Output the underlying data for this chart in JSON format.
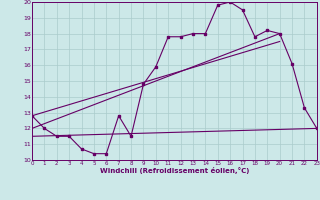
{
  "xlabel": "Windchill (Refroidissement éolien,°C)",
  "xlim": [
    0,
    23
  ],
  "ylim": [
    10,
    20
  ],
  "yticks": [
    10,
    11,
    12,
    13,
    14,
    15,
    16,
    17,
    18,
    19,
    20
  ],
  "xticks": [
    0,
    1,
    2,
    3,
    4,
    5,
    6,
    7,
    8,
    9,
    10,
    11,
    12,
    13,
    14,
    15,
    16,
    17,
    18,
    19,
    20,
    21,
    22,
    23
  ],
  "bg_color": "#cce8e8",
  "grid_color": "#aacccc",
  "line_color": "#660066",
  "main_line_x": [
    0,
    1,
    2,
    3,
    4,
    5,
    6,
    7,
    8,
    9,
    10,
    11,
    12,
    13,
    14,
    15,
    16,
    17,
    18,
    19,
    20,
    21,
    22,
    23
  ],
  "main_line_y": [
    12.8,
    12.0,
    11.5,
    11.5,
    10.7,
    10.4,
    10.4,
    12.8,
    11.5,
    14.8,
    15.9,
    17.8,
    17.8,
    18.0,
    18.0,
    19.8,
    20.0,
    19.5,
    17.8,
    18.2,
    18.0,
    16.1,
    13.3,
    12.0
  ],
  "flat_line_x": [
    0,
    23
  ],
  "flat_line_y": [
    11.5,
    12.0
  ],
  "diag_line1_x": [
    0,
    20
  ],
  "diag_line1_y": [
    12.0,
    18.0
  ],
  "diag_line2_x": [
    0,
    20
  ],
  "diag_line2_y": [
    12.8,
    17.5
  ]
}
